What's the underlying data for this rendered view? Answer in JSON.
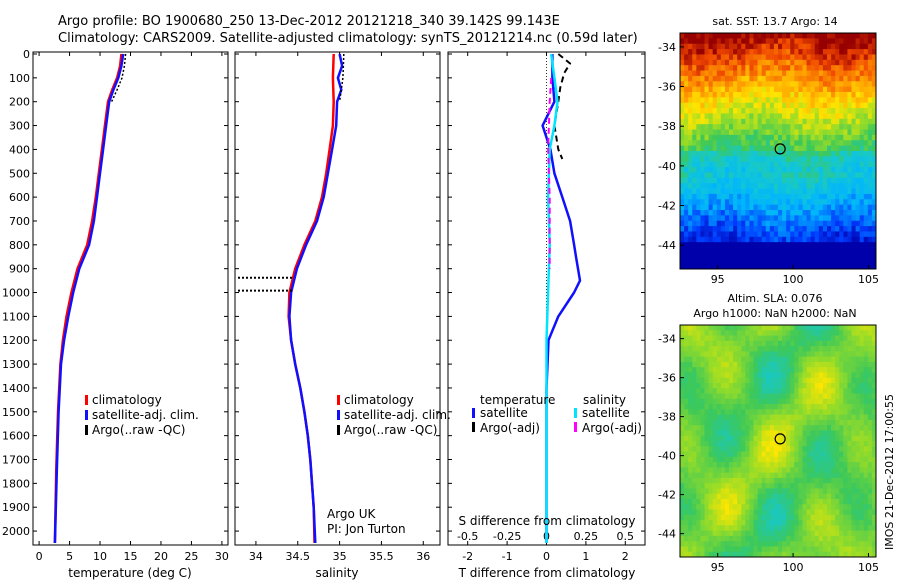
{
  "title": {
    "line1": "Argo profile: BO 1900680_250 13-Dec-2012 20121218_340 39.142S 99.143E",
    "line2": "Climatology: CARS2009. Satellite-adjusted climatology: synTS_20121214.nc (0.59d later)"
  },
  "footer": {
    "credit_line1": "Argo UK",
    "credit_line2": "PI: Jon Turton",
    "imos_stamp": "IMOS 21-Dec-2012 17:00:55"
  },
  "colors": {
    "climatology": "#ff0000",
    "satellite": "#1010ff",
    "argo": "#000000",
    "salinity_satellite": "#00e5ff",
    "salinity_argo": "#ff00ff"
  },
  "chart_data": [
    {
      "type": "line",
      "panel": "temperature",
      "xlabel": "temperature (deg C)",
      "xlim": [
        -1,
        31
      ],
      "xticks": [
        0,
        5,
        10,
        15,
        20,
        25,
        30
      ],
      "ylim": [
        2050,
        0
      ],
      "yticks": [
        0,
        100,
        200,
        300,
        400,
        500,
        600,
        700,
        800,
        900,
        1000,
        1100,
        1200,
        1300,
        1400,
        1500,
        1600,
        1700,
        1800,
        1900,
        2000
      ],
      "legend": [
        "climatology",
        "satellite-adj. clim.",
        "Argo(..raw -QC)"
      ],
      "series": [
        {
          "name": "climatology",
          "color": "#ff0000",
          "width": 2.5,
          "depth": [
            0,
            50,
            100,
            150,
            200,
            300,
            400,
            500,
            600,
            700,
            800,
            900,
            1000,
            1100,
            1200,
            1300,
            1500,
            1750,
            2050
          ],
          "values": [
            13.5,
            13.3,
            12.8,
            12.0,
            11.3,
            10.8,
            10.3,
            9.8,
            9.3,
            8.7,
            7.9,
            6.3,
            5.3,
            4.5,
            3.9,
            3.5,
            3.1,
            2.8,
            2.6
          ]
        },
        {
          "name": "satellite-adj. clim.",
          "color": "#1010ff",
          "width": 2.5,
          "depth": [
            0,
            50,
            100,
            150,
            200,
            300,
            400,
            500,
            600,
            700,
            800,
            900,
            1000,
            1100,
            1200,
            1300,
            1500,
            1750,
            2050
          ],
          "values": [
            13.8,
            13.5,
            13.0,
            12.2,
            11.5,
            11.0,
            10.5,
            10.0,
            9.5,
            9.0,
            8.2,
            6.6,
            5.6,
            4.8,
            4.1,
            3.6,
            3.2,
            2.9,
            2.6
          ]
        },
        {
          "name": "Argo(..raw -QC)",
          "color": "#000000",
          "width": 1.5,
          "dash": "2,2",
          "depth": [
            0,
            50,
            100,
            150,
            200
          ],
          "values": [
            14.2,
            14.0,
            13.6,
            12.8,
            11.9
          ]
        }
      ]
    },
    {
      "type": "line",
      "panel": "salinity",
      "xlabel": "salinity",
      "xlim": [
        33.75,
        36.2
      ],
      "xticks": [
        34,
        34.5,
        35,
        35.5,
        36
      ],
      "ylim": [
        2050,
        0
      ],
      "legend": [
        "climatology",
        "satellite-adj. clim.",
        "Argo(..raw -QC)"
      ],
      "series": [
        {
          "name": "climatology",
          "color": "#ff0000",
          "width": 2.5,
          "depth": [
            0,
            100,
            200,
            300,
            400,
            500,
            600,
            700,
            800,
            900,
            1000,
            1100,
            1200,
            1300,
            1400,
            1500,
            1600,
            1700,
            1800,
            1900,
            2050
          ],
          "values": [
            34.93,
            34.92,
            34.93,
            34.92,
            34.88,
            34.84,
            34.79,
            34.71,
            34.58,
            34.47,
            34.4,
            34.39,
            34.42,
            34.47,
            34.53,
            34.58,
            34.62,
            34.65,
            34.67,
            34.69,
            34.7
          ]
        },
        {
          "name": "satellite-adj. clim.",
          "color": "#1010ff",
          "width": 2.5,
          "depth": [
            0,
            50,
            100,
            150,
            200,
            300,
            400,
            500,
            600,
            700,
            800,
            900,
            1000,
            1100,
            1200,
            1300,
            1400,
            1500,
            1600,
            1700,
            1800,
            1900,
            2050
          ],
          "values": [
            35.0,
            35.03,
            34.98,
            35.02,
            34.97,
            34.96,
            34.91,
            34.86,
            34.81,
            34.73,
            34.6,
            34.49,
            34.42,
            34.4,
            34.42,
            34.47,
            34.53,
            34.58,
            34.62,
            34.65,
            34.67,
            34.69,
            34.71
          ]
        },
        {
          "name": "Argo(..raw -QC)",
          "color": "#000000",
          "width": 1.5,
          "dash": "2,2",
          "depth": [
            0,
            100,
            200
          ],
          "values": [
            35.05,
            35.04,
            35.0
          ]
        }
      ],
      "flagged_depths": [
        938,
        992
      ]
    },
    {
      "type": "line",
      "panel": "difference",
      "xlabel": "T difference from climatology",
      "secondary_xlabel": "S difference from climatology",
      "xlim": [
        -2.5,
        2.5
      ],
      "xticks": [
        -2,
        -1,
        0,
        1,
        2
      ],
      "secondary_xticks": [
        -0.5,
        -0.25,
        0,
        0.25,
        0.5
      ],
      "ylim": [
        2050,
        0
      ],
      "legend_groups": [
        {
          "title": "temperature",
          "entries": [
            "satellite",
            "Argo(-adj)"
          ]
        },
        {
          "title": "salinity",
          "entries": [
            "satellite",
            "Argo(-adj)"
          ]
        }
      ],
      "series": [
        {
          "name": "temperature satellite",
          "color": "#1010ff",
          "width": 2.5,
          "depth": [
            0,
            100,
            200,
            300,
            400,
            500,
            600,
            700,
            800,
            850,
            900,
            950,
            1000,
            1100,
            1200,
            1400,
            1600,
            2050
          ],
          "values": [
            0.15,
            0.15,
            0.2,
            -0.1,
            0.1,
            0.2,
            0.4,
            0.6,
            0.7,
            0.75,
            0.8,
            0.85,
            0.7,
            0.3,
            0.05,
            0.0,
            0.0,
            0.0
          ]
        },
        {
          "name": "temperature Argo(-adj)",
          "color": "#000000",
          "width": 2,
          "dash": "6,4",
          "depth": [
            0,
            40,
            80,
            140,
            200,
            300,
            400,
            440
          ],
          "values": [
            0.3,
            0.6,
            0.45,
            0.35,
            0.3,
            0.2,
            0.3,
            0.4
          ]
        },
        {
          "name": "salinity satellite",
          "color": "#00e5ff",
          "width": 2.5,
          "depth": [
            0,
            100,
            200,
            300,
            400,
            600,
            800,
            1000,
            1200,
            1500,
            2050
          ],
          "values": [
            0.03,
            0.05,
            0.07,
            0.05,
            0.02,
            0.01,
            0.02,
            0.01,
            0.0,
            0.0,
            0.0
          ]
        },
        {
          "name": "salinity Argo(-adj)",
          "color": "#ff00ff",
          "width": 2,
          "dash": "6,4",
          "depth": [
            100,
            200,
            400,
            600,
            800,
            900
          ],
          "values": [
            0.03,
            0.02,
            0.01,
            0.02,
            0.02,
            0.02
          ]
        }
      ]
    },
    {
      "type": "heatmap",
      "panel": "sst_map",
      "title": "sat. SST: 13.7 Argo: 14",
      "xlim": [
        92.5,
        105.5
      ],
      "ylim": [
        -45.2,
        -33.3
      ],
      "xticks": [
        95,
        100,
        105
      ],
      "yticks": [
        -34,
        -36,
        -38,
        -40,
        -42,
        -44
      ],
      "marker": {
        "lon": 99.143,
        "lat": -39.142
      }
    },
    {
      "type": "heatmap",
      "panel": "sla_map",
      "title_line1": "Altim. SLA: 0.076",
      "title_line2": "Argo h1000: NaN h2000: NaN",
      "xlim": [
        92.5,
        105.5
      ],
      "ylim": [
        -45.2,
        -33.3
      ],
      "xticks": [
        95,
        100,
        105
      ],
      "yticks": [
        -34,
        -36,
        -38,
        -40,
        -42,
        -44
      ],
      "marker": {
        "lon": 99.143,
        "lat": -39.142
      }
    }
  ]
}
